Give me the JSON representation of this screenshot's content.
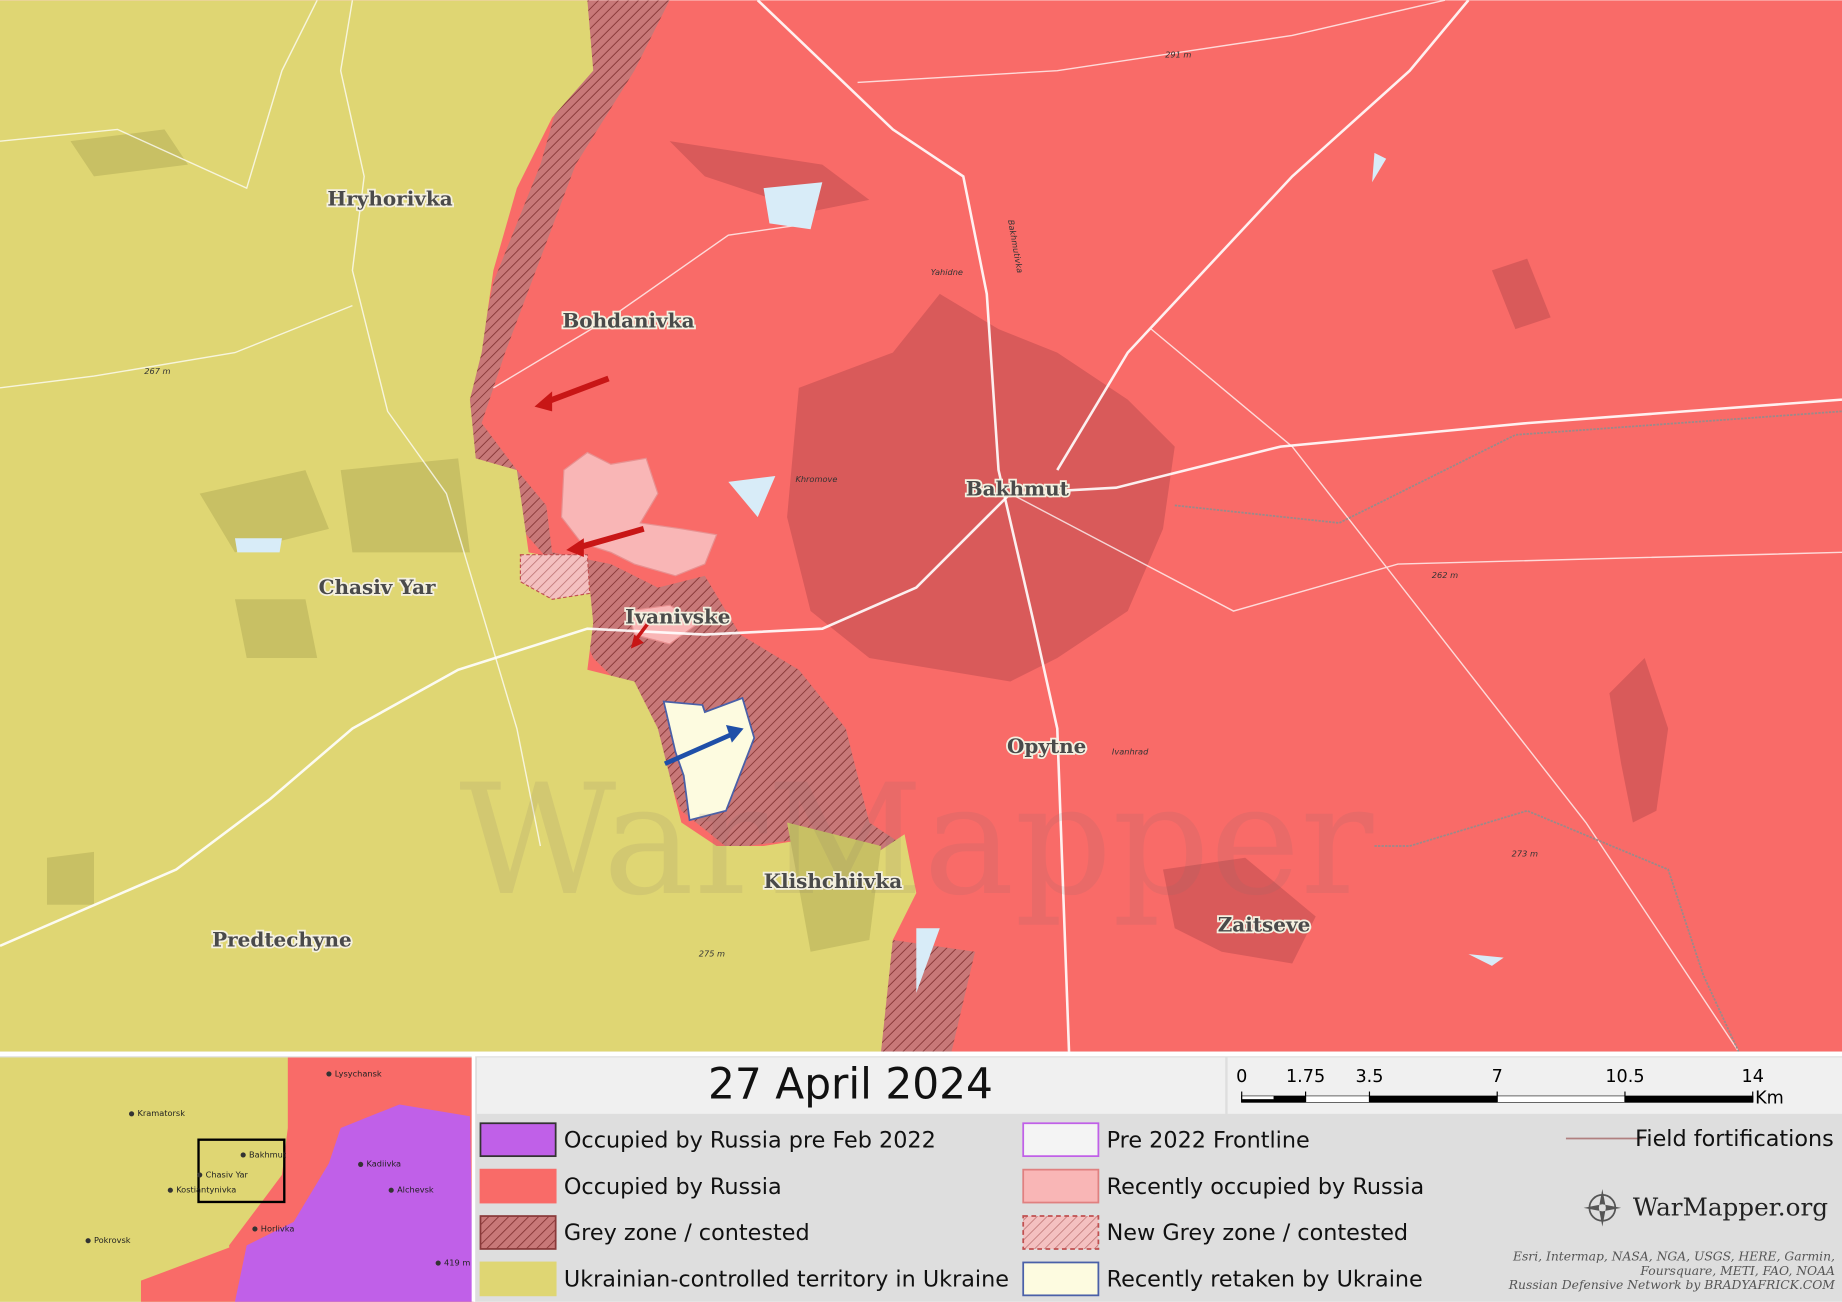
{
  "date": "27 April 2024",
  "places": [
    "Hryhorivka",
    "Bohdanivka",
    "Chasiv Yar",
    "Ivanivske",
    "Bakhmut",
    "Opytne",
    "Klishchiivka",
    "Predtechyne",
    "Zaitseve"
  ],
  "map_notes": [
    "291 m",
    "Yahidne",
    "Bakhmutivka",
    "Khromove",
    "Ivanhrad",
    "267 m",
    "262 m",
    "275 m",
    "273 m"
  ],
  "watermark": "WarMapper",
  "legend": [
    "Occupied by Russia pre Feb 2022",
    "Occupied by Russia",
    "Grey zone / contested",
    "Ukrainian-controlled territory in Ukraine",
    "Pre 2022 Frontline",
    "Recently occupied by Russia",
    "New Grey zone / contested",
    "Recently retaken by Ukraine",
    "Field fortifications"
  ],
  "scale": {
    "ticks": [
      0,
      1.75,
      3.5,
      7,
      10.5,
      14
    ],
    "unit": "Km"
  },
  "brand": "WarMapper.org",
  "attribution": [
    "Esri, Intermap, NASA, NGA, USGS, HERE, Garmin,",
    "Foursquare, METI, FAO, NOAA",
    "Russian Defensive Network by BRADYAFRICK.COM"
  ],
  "inset": {
    "labels": [
      "Lysychansk",
      "Kramatorsk",
      "Bakhmut",
      "Chasiv Yar",
      "Kostiantynivka",
      "Kadiivka",
      "Alchevsk",
      "Horlivka",
      "Pokrovsk",
      "419 m"
    ]
  }
}
